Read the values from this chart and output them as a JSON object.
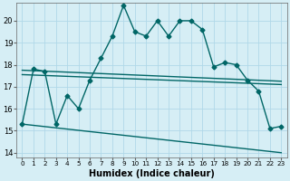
{
  "xlabel": "Humidex (Indice chaleur)",
  "bg_color": "#d6eef5",
  "plot_bg_color": "#d6eef5",
  "grid_color": "#b0d8e8",
  "line_color": "#006666",
  "ylim": [
    13.8,
    20.8
  ],
  "xlim": [
    -0.5,
    23.5
  ],
  "yticks": [
    14,
    15,
    16,
    17,
    18,
    19,
    20
  ],
  "xticks": [
    0,
    1,
    2,
    3,
    4,
    5,
    6,
    7,
    8,
    9,
    10,
    11,
    12,
    13,
    14,
    15,
    16,
    17,
    18,
    19,
    20,
    21,
    22,
    23
  ],
  "curve1_x": [
    0,
    1,
    2,
    3,
    4,
    5,
    6,
    7,
    8,
    9,
    10,
    11,
    12,
    13,
    14,
    15,
    16,
    17,
    18,
    19,
    20,
    21,
    22,
    23
  ],
  "curve1_y": [
    15.3,
    17.8,
    17.7,
    15.3,
    16.6,
    16.0,
    17.3,
    18.3,
    19.3,
    20.7,
    19.5,
    19.3,
    20.0,
    19.3,
    20.0,
    20.0,
    19.6,
    17.9,
    18.1,
    18.0,
    17.3,
    16.8,
    15.1,
    15.2
  ],
  "curve2_x": [
    0,
    23
  ],
  "curve2_y": [
    17.55,
    17.1
  ],
  "curve3_x": [
    0,
    23
  ],
  "curve3_y": [
    17.75,
    17.25
  ],
  "curve4_x": [
    0,
    23
  ],
  "curve4_y": [
    15.3,
    14.0
  ],
  "marker": "D",
  "markersize": 2.5,
  "linewidth": 1.0
}
